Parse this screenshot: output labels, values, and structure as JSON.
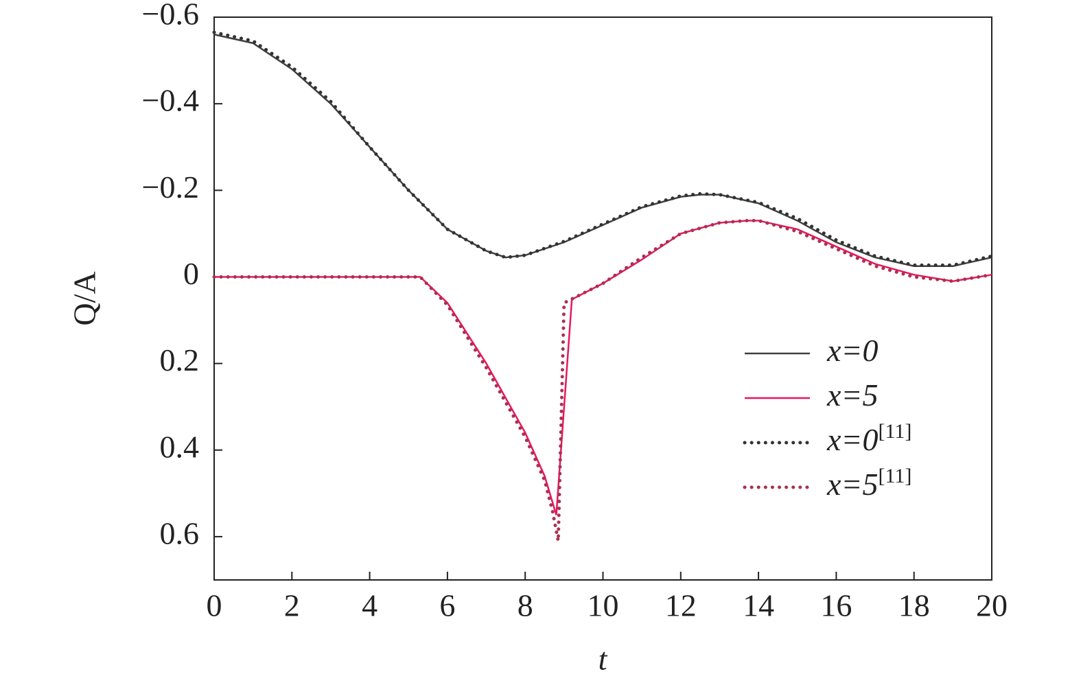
{
  "chart_data": {
    "type": "line",
    "xlabel": "t",
    "ylabel": "Q/A",
    "xlim": [
      0,
      20
    ],
    "xticks": [
      0,
      2,
      4,
      6,
      8,
      10,
      12,
      14,
      16,
      18,
      20
    ],
    "ylim": [
      -0.6,
      0.7
    ],
    "y_inverted": true,
    "yticks": [
      {
        "value": -0.6,
        "label": "−0.6"
      },
      {
        "value": -0.4,
        "label": "−0.4"
      },
      {
        "value": -0.2,
        "label": "−0.2"
      },
      0,
      0.2,
      0.4,
      0.6
    ],
    "legend": "lower right",
    "series": [
      {
        "name": "x=0",
        "color": "#404040",
        "dash": "solid",
        "x": [
          0,
          1,
          2,
          3,
          4,
          5,
          6,
          7,
          7.5,
          8,
          9,
          10,
          11,
          12,
          12.5,
          13,
          14,
          15,
          16,
          17,
          18,
          19,
          20
        ],
        "values": [
          -0.56,
          -0.54,
          -0.48,
          -0.4,
          -0.3,
          -0.2,
          -0.11,
          -0.06,
          -0.045,
          -0.05,
          -0.08,
          -0.12,
          -0.16,
          -0.185,
          -0.19,
          -0.19,
          -0.17,
          -0.13,
          -0.08,
          -0.045,
          -0.025,
          -0.025,
          -0.045
        ]
      },
      {
        "name": "x=5",
        "color": "#e8175d",
        "dash": "solid",
        "x": [
          0,
          1,
          2,
          3,
          4,
          5,
          5.3,
          6,
          7,
          8,
          8.5,
          8.8,
          9.2,
          10,
          11,
          12,
          13,
          13.7,
          14,
          15,
          16,
          17,
          18,
          19,
          20
        ],
        "values": [
          0,
          0,
          0,
          0,
          0,
          0,
          0,
          0.06,
          0.2,
          0.36,
          0.46,
          0.55,
          0.052,
          0.015,
          -0.04,
          -0.1,
          -0.125,
          -0.13,
          -0.13,
          -0.11,
          -0.07,
          -0.03,
          -0.005,
          0.01,
          -0.005
        ]
      },
      {
        "name": "x=0",
        "citation": "[11]",
        "color": "#333333",
        "dash": "dotted",
        "x": [
          0,
          1,
          2,
          3,
          4,
          5,
          6,
          7,
          7.5,
          8,
          9,
          10,
          11,
          12,
          12.5,
          13,
          14,
          15,
          16,
          17,
          18,
          19,
          20
        ],
        "values": [
          -0.565,
          -0.545,
          -0.485,
          -0.405,
          -0.3,
          -0.2,
          -0.11,
          -0.06,
          -0.045,
          -0.05,
          -0.082,
          -0.122,
          -0.162,
          -0.187,
          -0.192,
          -0.19,
          -0.172,
          -0.135,
          -0.085,
          -0.048,
          -0.027,
          -0.027,
          -0.048
        ]
      },
      {
        "name": "x=5",
        "citation": "[11]",
        "color": "#a83250",
        "dash": "dotted",
        "x": [
          0,
          1,
          2,
          3,
          4,
          5,
          5.3,
          6,
          7,
          8,
          8.5,
          8.7,
          8.85,
          9.0,
          10,
          11,
          12,
          13,
          13.7,
          14,
          15,
          16,
          17,
          18,
          19,
          20
        ],
        "values": [
          0,
          0,
          0,
          0,
          0,
          0,
          0,
          0.065,
          0.21,
          0.37,
          0.47,
          0.54,
          0.61,
          0.06,
          0.015,
          -0.045,
          -0.1,
          -0.125,
          -0.13,
          -0.13,
          -0.105,
          -0.065,
          -0.025,
          0,
          0.01,
          -0.005
        ]
      }
    ]
  }
}
